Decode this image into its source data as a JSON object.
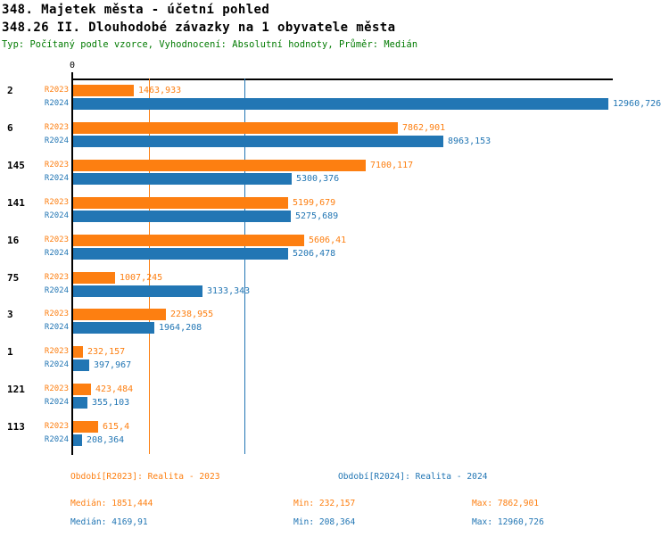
{
  "header": {
    "title1": "348. Majetek města - účetní pohled",
    "title2": "348.26 II. Dlouhodobé závazky na 1 obyvatele města",
    "meta": "Typ: Počítaný podle vzorce, Vyhodnocení: Absolutní hodnoty, Průměr: Medián"
  },
  "colors": {
    "r2023": "#fd7f11",
    "r2024": "#2276b4",
    "meta_green": "#007a00",
    "axis": "#000000"
  },
  "chart_data": {
    "type": "bar",
    "orientation": "horizontal",
    "title": "348.26 II. Dlouhodobé závazky na 1 obyvatele města",
    "xlabel": "",
    "ylabel": "",
    "axis": {
      "origin_label": "0",
      "xlim": [
        0,
        13100
      ],
      "grid": "median-lines-only"
    },
    "categories": [
      "2",
      "6",
      "145",
      "141",
      "16",
      "75",
      "3",
      "1",
      "121",
      "113"
    ],
    "series": [
      {
        "name": "R2023",
        "color": "#fd7f11",
        "values": [
          1463.933,
          7862.901,
          7100.117,
          5199.679,
          5606.41,
          1007.245,
          2238.955,
          232.157,
          423.484,
          615.4
        ],
        "labels": [
          "1463,933",
          "7862,901",
          "7100,117",
          "5199,679",
          "5606,41",
          "1007,245",
          "2238,955",
          "232,157",
          "423,484",
          "615,4"
        ]
      },
      {
        "name": "R2024",
        "color": "#2276b4",
        "values": [
          12960.726,
          8963.153,
          5300.376,
          5275.689,
          5206.478,
          3133.343,
          1964.208,
          397.967,
          355.103,
          208.364
        ],
        "labels": [
          "12960,726",
          "8963,153",
          "5300,376",
          "5275,689",
          "5206,478",
          "3133,343",
          "1964,208",
          "397,967",
          "355,103",
          "208,364"
        ]
      }
    ],
    "median_lines": [
      {
        "series": "R2023",
        "value": 1851.444,
        "color": "#fd7f11"
      },
      {
        "series": "R2024",
        "value": 4169.91,
        "color": "#2276b4"
      }
    ]
  },
  "footer": {
    "legend_r2023": "Období[R2023]: Realita - 2023",
    "legend_r2024": "Období[R2024]: Realita - 2024",
    "stats_r2023": {
      "median": "Medián: 1851,444",
      "min": "Min: 232,157",
      "max": "Max: 7862,901"
    },
    "stats_r2024": {
      "median": "Medián: 4169,91",
      "min": "Min: 208,364",
      "max": "Max: 12960,726"
    }
  }
}
